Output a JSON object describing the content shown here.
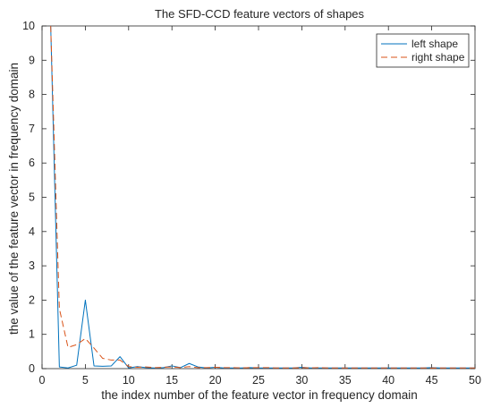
{
  "chart_data": {
    "type": "line",
    "title": "The SFD-CCD feature vectors of shapes",
    "xlabel": "the index number of the feature vector in frequency domain",
    "ylabel": "the value of the feature vector in frequency domain",
    "xlim": [
      0,
      50
    ],
    "ylim": [
      0,
      10
    ],
    "x_ticks": [
      0,
      5,
      10,
      15,
      20,
      25,
      30,
      35,
      40,
      45,
      50
    ],
    "y_ticks": [
      0,
      1,
      2,
      3,
      4,
      5,
      6,
      7,
      8,
      9,
      10
    ],
    "grid": false,
    "legend_position": "top-right",
    "x": [
      1,
      2,
      3,
      4,
      5,
      6,
      7,
      8,
      9,
      10,
      11,
      12,
      13,
      14,
      15,
      16,
      17,
      18,
      19,
      20,
      21,
      22,
      23,
      24,
      25,
      26,
      27,
      28,
      29,
      30,
      31,
      32,
      33,
      34,
      35,
      36,
      37,
      38,
      39,
      40,
      41,
      42,
      43,
      44,
      45,
      46,
      47,
      48,
      49,
      50
    ],
    "series": [
      {
        "name": "left shape",
        "color": "#0072BD",
        "style": "solid",
        "values": [
          10,
          0.05,
          0.02,
          0.1,
          2.0,
          0.08,
          0.07,
          0.08,
          0.35,
          0.02,
          0.06,
          0.03,
          0.02,
          0.03,
          0.08,
          0.03,
          0.15,
          0.05,
          0.02,
          0.04,
          0.02,
          0.02,
          0.02,
          0.03,
          0.02,
          0.02,
          0.02,
          0.02,
          0.02,
          0.04,
          0.02,
          0.02,
          0.02,
          0.02,
          0.02,
          0.02,
          0.02,
          0.02,
          0.02,
          0.02,
          0.02,
          0.02,
          0.02,
          0.02,
          0.03,
          0.02,
          0.02,
          0.02,
          0.02,
          0.02
        ]
      },
      {
        "name": "right shape",
        "color": "#D95319",
        "style": "dashed",
        "values": [
          10,
          1.75,
          0.62,
          0.7,
          0.88,
          0.6,
          0.3,
          0.25,
          0.25,
          0.06,
          0.04,
          0.05,
          0.03,
          0.04,
          0.05,
          0.03,
          0.06,
          0.03,
          0.03,
          0.04,
          0.03,
          0.03,
          0.02,
          0.03,
          0.03,
          0.03,
          0.02,
          0.02,
          0.02,
          0.03,
          0.02,
          0.03,
          0.02,
          0.02,
          0.02,
          0.02,
          0.02,
          0.02,
          0.02,
          0.02,
          0.02,
          0.02,
          0.02,
          0.02,
          0.02,
          0.02,
          0.02,
          0.02,
          0.02,
          0.02
        ]
      }
    ]
  }
}
